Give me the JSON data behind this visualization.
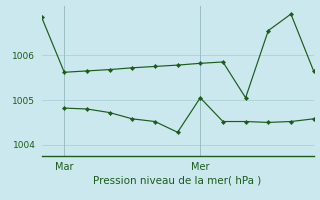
{
  "title": "",
  "xlabel": "Pression niveau de la mer( hPa )",
  "background_color": "#cce8ef",
  "grid_color": "#b0d4dc",
  "line_color": "#1a5c1a",
  "x_ticks_labels": [
    "Mar",
    "Mer"
  ],
  "x_ticks_pos": [
    2,
    14
  ],
  "ylim": [
    1003.75,
    1007.1
  ],
  "yticks": [
    1004,
    1005,
    1006
  ],
  "series1_x": [
    0,
    2,
    4,
    6,
    8,
    10,
    12,
    14,
    16,
    18,
    20,
    22,
    24
  ],
  "series1_y": [
    1006.85,
    1005.62,
    1005.65,
    1005.68,
    1005.72,
    1005.75,
    1005.78,
    1005.82,
    1005.85,
    1005.05,
    1006.55,
    1006.92,
    1005.65
  ],
  "series2_x": [
    2,
    4,
    6,
    8,
    10,
    12,
    14,
    16,
    18,
    20,
    22,
    24
  ],
  "series2_y": [
    1004.82,
    1004.8,
    1004.72,
    1004.58,
    1004.52,
    1004.28,
    1005.05,
    1004.52,
    1004.52,
    1004.5,
    1004.52,
    1004.58
  ],
  "figsize": [
    3.2,
    2.0
  ],
  "dpi": 100
}
